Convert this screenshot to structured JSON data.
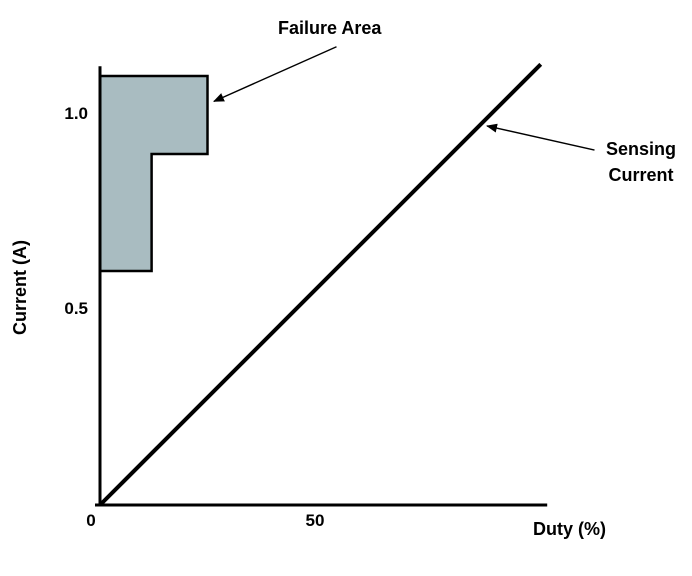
{
  "chart_data": {
    "type": "line",
    "title": "",
    "xlabel": "Duty (%)",
    "ylabel": "Current (A)",
    "xlim": [
      0,
      104
    ],
    "ylim": [
      0,
      1.125
    ],
    "grid": false,
    "axis_color": "#000000",
    "background": "#ffffff",
    "x_ticks": [
      {
        "value": 0,
        "label": "0"
      },
      {
        "value": 50,
        "label": "50"
      }
    ],
    "y_ticks": [
      {
        "value": 0.5,
        "label": "0.5"
      },
      {
        "value": 1.0,
        "label": "1.0"
      }
    ],
    "series": [
      {
        "name": "Sensing Current",
        "x": [
          0,
          102.5
        ],
        "y": [
          0,
          1.13
        ],
        "color": "#000000",
        "width": 4
      }
    ],
    "regions": [
      {
        "name": "Failure Area",
        "fill": "#a9bcc1",
        "stroke": "#000000",
        "stroke_width": 2.5,
        "polygon_x": [
          0,
          0,
          25,
          25,
          12,
          12
        ],
        "polygon_y": [
          0.6,
          1.1,
          1.1,
          0.9,
          0.9,
          0.6
        ]
      }
    ],
    "annotations": [
      {
        "text": "Failure Area",
        "lines": [
          "Failure Area"
        ],
        "arrow_from": [
          55,
          1.175
        ],
        "arrow_to": [
          26.5,
          1.035
        ]
      },
      {
        "text": "Sensing Current",
        "lines": [
          "Sensing",
          "Current"
        ],
        "arrow_from": [
          115,
          0.91
        ],
        "arrow_to": [
          90,
          0.972
        ]
      }
    ]
  }
}
